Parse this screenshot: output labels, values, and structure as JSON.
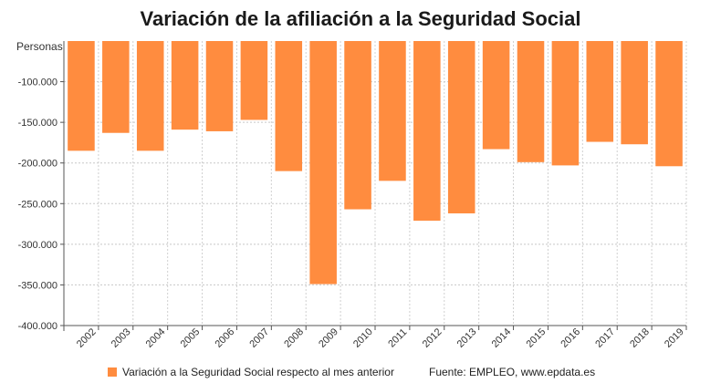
{
  "chart_data": {
    "type": "bar",
    "title": "Variación de la afiliación a la Seguridad Social",
    "ylabel": "Personas",
    "xlabel": "",
    "categories": [
      "2002",
      "2003",
      "2004",
      "2005",
      "2006",
      "2007",
      "2008",
      "2009",
      "2010",
      "2011",
      "2012",
      "2013",
      "2014",
      "2015",
      "2016",
      "2017",
      "2018",
      "2019"
    ],
    "series": [
      {
        "name": "Variación a la Seguridad Social respecto al mes anterior",
        "color": "#ff8c3f",
        "values": [
          -185000,
          -163000,
          -185000,
          -159000,
          -161000,
          -147000,
          -210000,
          -349000,
          -257000,
          -222000,
          -271000,
          -262000,
          -183000,
          -199000,
          -203000,
          -174000,
          -177000,
          -204000
        ]
      }
    ],
    "ylim": [
      -400000,
      -50000
    ],
    "yticks": [
      -100000,
      -150000,
      -200000,
      -250000,
      -300000,
      -350000,
      -400000
    ],
    "ytick_labels": [
      "-100.000",
      "-150.000",
      "-200.000",
      "-250.000",
      "-300.000",
      "-350.000",
      "-400.000"
    ],
    "grid": true,
    "legend_position": "bottom-left",
    "source": "Fuente: EMPLEO, www.epdata.es"
  }
}
